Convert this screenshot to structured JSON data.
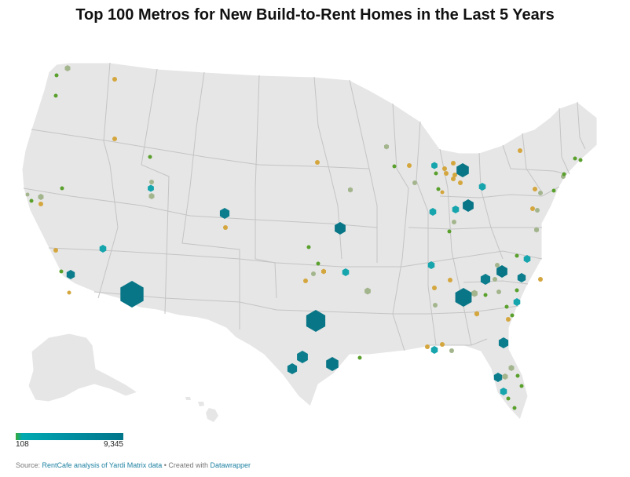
{
  "title": "Top 100 Metros for New Build-to-Rent Homes in the Last 5 Years",
  "legend": {
    "min_label": "108",
    "max_label": "9,345",
    "min_value": 108,
    "max_value": 9345,
    "colors": [
      "#3aa935",
      "#00aab0",
      "#0092a5",
      "#00758a"
    ]
  },
  "footer": {
    "source_prefix": "Source: ",
    "source_link": "RentCafe analysis of Yardi Matrix data",
    "separator": " • Created with ",
    "tool_link": "Datawrapper"
  },
  "colors": {
    "land": "#e6e6e6",
    "state_border": "#c4c4c4",
    "small_green": "#5aa02c",
    "small_gold": "#d4a63e",
    "small_sage": "#a3b58d",
    "teal": "#16a5ad",
    "teal_dark": "#0b7d8c",
    "teal_darkest": "#087686"
  }
}
